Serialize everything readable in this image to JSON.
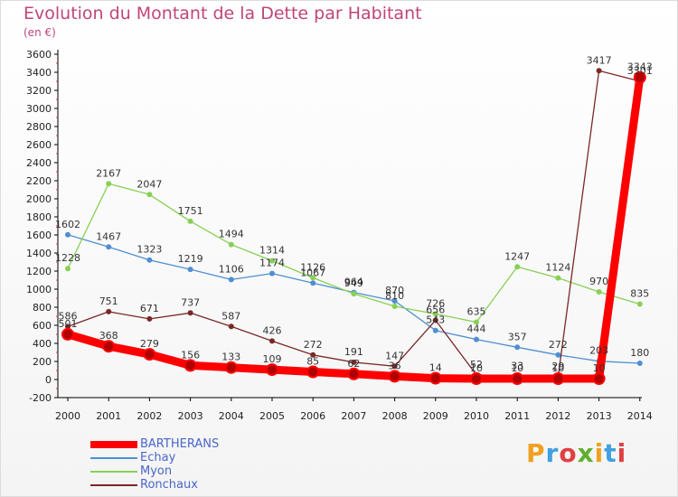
{
  "title": "Evolution du Montant de la Dette par Habitant",
  "subtitle": "(en €)",
  "logo": {
    "text": "Proxiti",
    "colors": [
      "#f0a020",
      "#40a0e0",
      "#e04040",
      "#60b030",
      "#f0a020",
      "#40a0e0",
      "#e04040"
    ]
  },
  "chart_data": {
    "type": "line",
    "x": [
      "2000",
      "2001",
      "2002",
      "2003",
      "2004",
      "2005",
      "2006",
      "2007",
      "2008",
      "2009",
      "2010",
      "2011",
      "2012",
      "2013",
      "2014"
    ],
    "y_ticks": [
      "-200",
      "0",
      "200",
      "400",
      "600",
      "800",
      "1000",
      "1200",
      "1400",
      "1600",
      "1800",
      "2000",
      "2200",
      "2400",
      "2600",
      "2800",
      "3000",
      "3200",
      "3400",
      "3600"
    ],
    "ylim": [
      -200,
      3600
    ],
    "grid": false,
    "legend_position": "bottom-left",
    "series": [
      {
        "name": "BARTHERANS",
        "color": "#ff0000",
        "values": [
          501,
          368,
          279,
          156,
          133,
          109,
          85,
          62,
          36,
          14,
          10,
          10,
          10,
          10,
          3343
        ]
      },
      {
        "name": "Echay",
        "color": "#4f8fd0",
        "values": [
          1602,
          1467,
          1323,
          1219,
          1106,
          1174,
          1067,
          964,
          870,
          543,
          444,
          357,
          272,
          203,
          180
        ]
      },
      {
        "name": "Myon",
        "color": "#88d055",
        "values": [
          1228,
          2167,
          2047,
          1751,
          1494,
          1314,
          1126,
          949,
          810,
          726,
          635,
          1247,
          1124,
          970,
          835
        ]
      },
      {
        "name": "Ronchaux",
        "color": "#7a2828",
        "values": [
          586,
          751,
          671,
          737,
          587,
          426,
          272,
          191,
          147,
          656,
          52,
          33,
          29,
          3417,
          3301
        ]
      }
    ]
  }
}
